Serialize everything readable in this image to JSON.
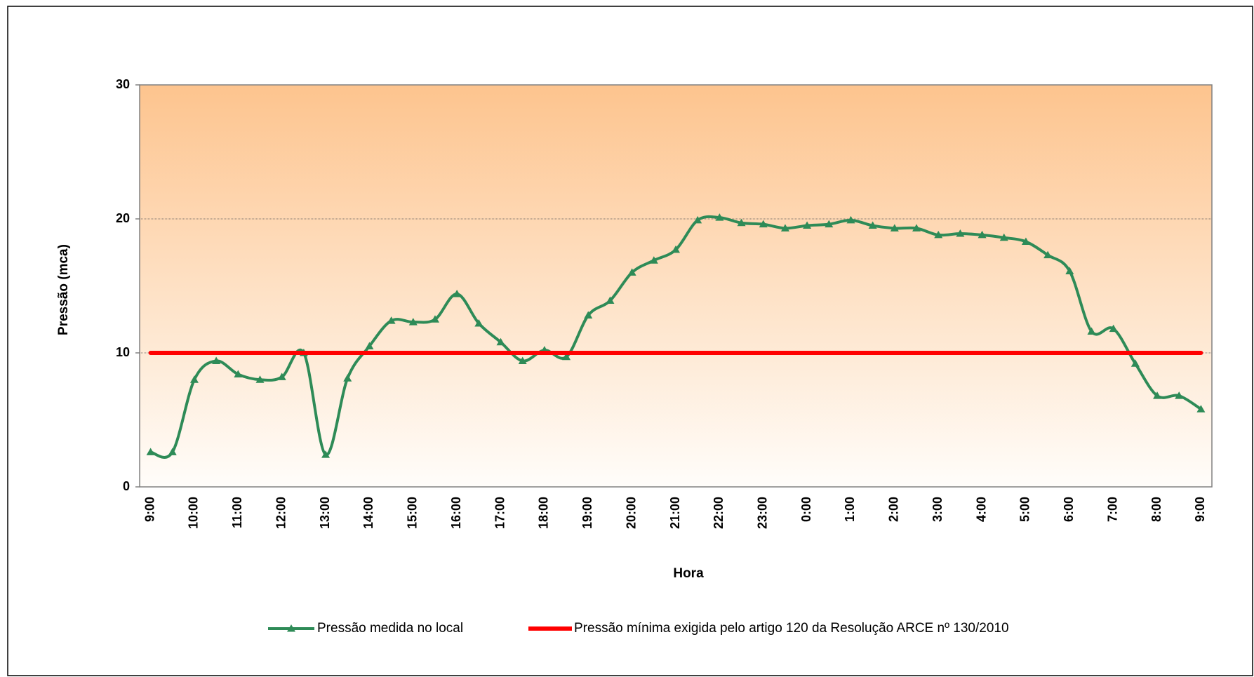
{
  "chart_data": {
    "type": "line",
    "x_label": "Hora",
    "y_label": "Pressão (mca)",
    "categories": [
      "9:00",
      null,
      "10:00",
      null,
      "11:00",
      null,
      "12:00",
      null,
      "13:00",
      null,
      "14:00",
      null,
      "15:00",
      null,
      "16:00",
      null,
      "17:00",
      null,
      "18:00",
      null,
      "19:00",
      null,
      "20:00",
      null,
      "21:00",
      null,
      "22:00",
      null,
      "23:00",
      null,
      "0:00",
      null,
      "1:00",
      null,
      "2:00",
      null,
      "3:00",
      null,
      "4:00",
      null,
      "5:00",
      null,
      "6:00",
      null,
      "7:00",
      null,
      "8:00",
      null,
      "9:00"
    ],
    "series": [
      {
        "name": "Pressão medida no local",
        "color": "#2e8b57",
        "marker": "triangle",
        "smooth": true,
        "values": [
          2.6,
          2.6,
          8.0,
          9.4,
          8.4,
          8.0,
          8.2,
          10.0,
          2.4,
          8.1,
          10.5,
          12.4,
          12.3,
          12.5,
          14.4,
          12.2,
          10.8,
          9.4,
          10.2,
          9.7,
          12.8,
          13.9,
          16.0,
          16.9,
          17.7,
          19.9,
          20.1,
          19.7,
          19.6,
          19.3,
          19.5,
          19.6,
          19.9,
          19.5,
          19.3,
          19.3,
          18.8,
          18.9,
          18.8,
          18.6,
          18.3,
          17.3,
          16.1,
          11.6,
          11.8,
          9.2,
          6.8,
          6.8,
          5.8
        ]
      },
      {
        "name": "Pressão mínima exigida pelo artigo 120 da Resolução ARCE nº 130/2010",
        "color": "#ff0000",
        "marker": "none",
        "smooth": false,
        "values": [
          10,
          10,
          10,
          10,
          10,
          10,
          10,
          10,
          10,
          10,
          10,
          10,
          10,
          10,
          10,
          10,
          10,
          10,
          10,
          10,
          10,
          10,
          10,
          10,
          10,
          10,
          10,
          10,
          10,
          10,
          10,
          10,
          10,
          10,
          10,
          10,
          10,
          10,
          10,
          10,
          10,
          10,
          10,
          10,
          10,
          10,
          10,
          10,
          10
        ]
      }
    ],
    "ylim": [
      0,
      30
    ],
    "yticks": [
      0,
      10,
      20,
      30
    ],
    "grid": true,
    "legend": "bottom"
  }
}
